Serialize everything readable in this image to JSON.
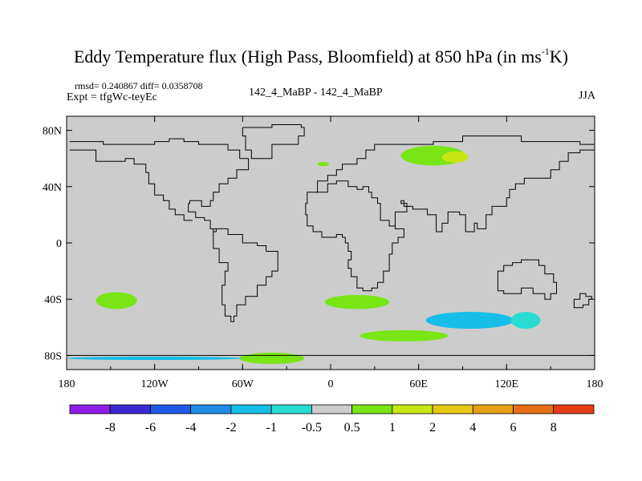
{
  "header": {
    "title_main": "Eddy Temperature flux (High Pass, Bloomfield) at 850 hPa (in ms",
    "title_sup": "-1",
    "title_end": "K)",
    "stats": "rmsd= 0.240867 diff= 0.0358708",
    "experiment": "Expt = tfgWc-teyEc",
    "comparison": "142_4_MaBP - 142_4_MaBP",
    "season": "JJA"
  },
  "colors": {
    "background_field": "#cccccc",
    "coastline": "#000000"
  },
  "chart_data": {
    "type": "heatmap",
    "title": "Eddy Temperature flux (High Pass, Bloomfield) at 850 hPa (in ms-1K)",
    "xlabel": "",
    "ylabel": "",
    "xlim": [
      -180,
      180
    ],
    "ylim": [
      -90,
      90
    ],
    "x_ticks": [
      {
        "value": -180,
        "label": "180"
      },
      {
        "value": -120,
        "label": "120W"
      },
      {
        "value": -60,
        "label": "60W"
      },
      {
        "value": 0,
        "label": "0"
      },
      {
        "value": 60,
        "label": "60E"
      },
      {
        "value": 120,
        "label": "120E"
      },
      {
        "value": 180,
        "label": "180"
      }
    ],
    "y_ticks": [
      {
        "value": 80,
        "label": "80N"
      },
      {
        "value": 40,
        "label": "40N"
      },
      {
        "value": 0,
        "label": "0"
      },
      {
        "value": -40,
        "label": "40S"
      },
      {
        "value": -80,
        "label": "80S"
      }
    ],
    "colorbar": {
      "colors": [
        "#8c1ee6",
        "#3c28d2",
        "#1e5ae6",
        "#1e8ce6",
        "#14bee6",
        "#28dcd2",
        "#cccccc",
        "#78e614",
        "#c8e614",
        "#e6c814",
        "#e6a014",
        "#e66e14",
        "#e63c14"
      ],
      "labels": [
        "-8",
        "-6",
        "-4",
        "-2",
        "-1",
        "-0.5",
        "0.5",
        "1",
        "2",
        "4",
        "6",
        "8"
      ]
    },
    "anomalies": [
      {
        "name": "arctic-asia-positive",
        "lon": 70,
        "lat": 62,
        "rx": 22,
        "ry": 7,
        "level": 1
      },
      {
        "name": "arctic-asia-core",
        "lon": 85,
        "lat": 61,
        "rx": 9,
        "ry": 4,
        "level": 2
      },
      {
        "name": "north-atlantic-small",
        "lon": -5,
        "lat": 56,
        "rx": 4,
        "ry": 1.5,
        "level": 1
      },
      {
        "name": "south-pacific",
        "lon": -146,
        "lat": -41,
        "rx": 14,
        "ry": 6,
        "level": 1
      },
      {
        "name": "south-atlantic-africa",
        "lon": 18,
        "lat": -42,
        "rx": 22,
        "ry": 5,
        "level": 1
      },
      {
        "name": "south-atlantic-band",
        "lon": 50,
        "lat": -66,
        "rx": 30,
        "ry": 4,
        "level": 1
      },
      {
        "name": "indian-ocean-neg",
        "lon": 95,
        "lat": -55,
        "rx": 30,
        "ry": 6,
        "level": -1
      },
      {
        "name": "australia-south-neg",
        "lon": 133,
        "lat": -55,
        "rx": 10,
        "ry": 6,
        "level": -0.5
      },
      {
        "name": "antarctic-coast-pos",
        "lon": -40,
        "lat": -82,
        "rx": 22,
        "ry": 4,
        "level": 1
      },
      {
        "name": "antarctic-belt-neg",
        "lon": -120,
        "lat": -82,
        "rx": 60,
        "ry": 1.2,
        "level": -1
      }
    ]
  }
}
